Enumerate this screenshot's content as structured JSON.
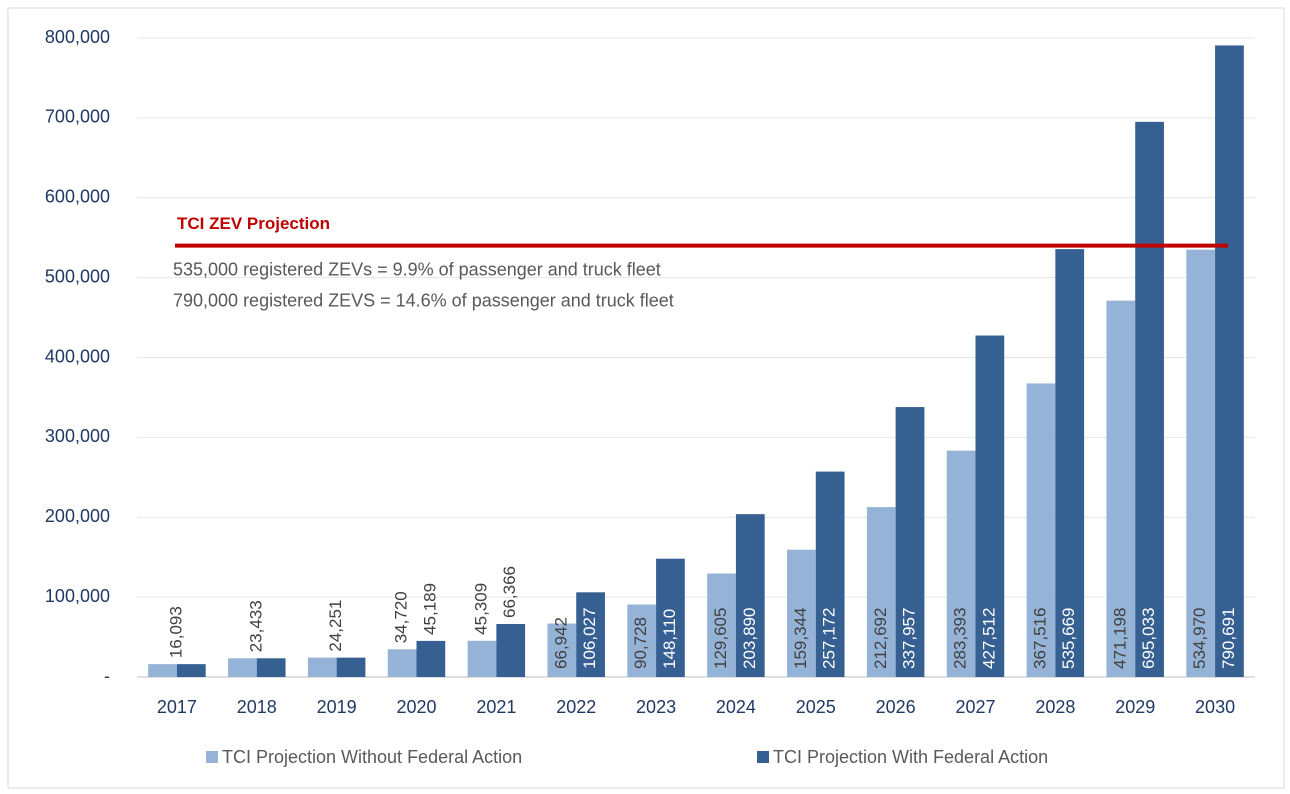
{
  "chart_data": {
    "type": "bar",
    "categories": [
      "2017",
      "2018",
      "2019",
      "2020",
      "2021",
      "2022",
      "2023",
      "2024",
      "2025",
      "2026",
      "2027",
      "2028",
      "2029",
      "2030"
    ],
    "series": [
      {
        "name": "TCI Projection Without Federal Action",
        "color": "#95b3d7",
        "values": [
          16093,
          23433,
          24251,
          34720,
          45309,
          66942,
          90728,
          129605,
          159344,
          212692,
          283393,
          367516,
          471198,
          534970
        ],
        "value_labels": [
          "16,093",
          "23,433",
          "24,251",
          "34,720",
          "45,309",
          "66,942",
          "90,728",
          "129,605",
          "159,344",
          "212,692",
          "283,393",
          "367,516",
          "471,198",
          "534,970"
        ]
      },
      {
        "name": "TCI Projection With Federal Action",
        "color": "#366092",
        "values": [
          16093,
          23433,
          24251,
          45189,
          66366,
          106027,
          148110,
          203890,
          257172,
          337957,
          427512,
          535669,
          695033,
          790691
        ],
        "value_labels": [
          null,
          null,
          null,
          "45,189",
          "66,366",
          "106,027",
          "148,110",
          "203,890",
          "257,172",
          "337,957",
          "427,512",
          "535,669",
          "695,033",
          "790,691"
        ]
      }
    ],
    "ylim": [
      0,
      800000
    ],
    "yticks": [
      {
        "value": 0,
        "label": "-"
      },
      {
        "value": 100000,
        "label": "100,000"
      },
      {
        "value": 200000,
        "label": "200,000"
      },
      {
        "value": 300000,
        "label": "300,000"
      },
      {
        "value": 400000,
        "label": "400,000"
      },
      {
        "value": 500000,
        "label": "500,000"
      },
      {
        "value": 600000,
        "label": "600,000"
      },
      {
        "value": 700000,
        "label": "700,000"
      },
      {
        "value": 800000,
        "label": "800,000"
      }
    ],
    "grid": true,
    "legend": "bottom",
    "reference_line": {
      "label": "TCI ZEV Projection",
      "value": 540000,
      "color": "#c00000"
    },
    "annotations": [
      "535,000 registered ZEVs = 9.9% of passenger and truck fleet",
      "790,000 registered ZEVS = 14.6% of passenger and truck fleet"
    ]
  }
}
